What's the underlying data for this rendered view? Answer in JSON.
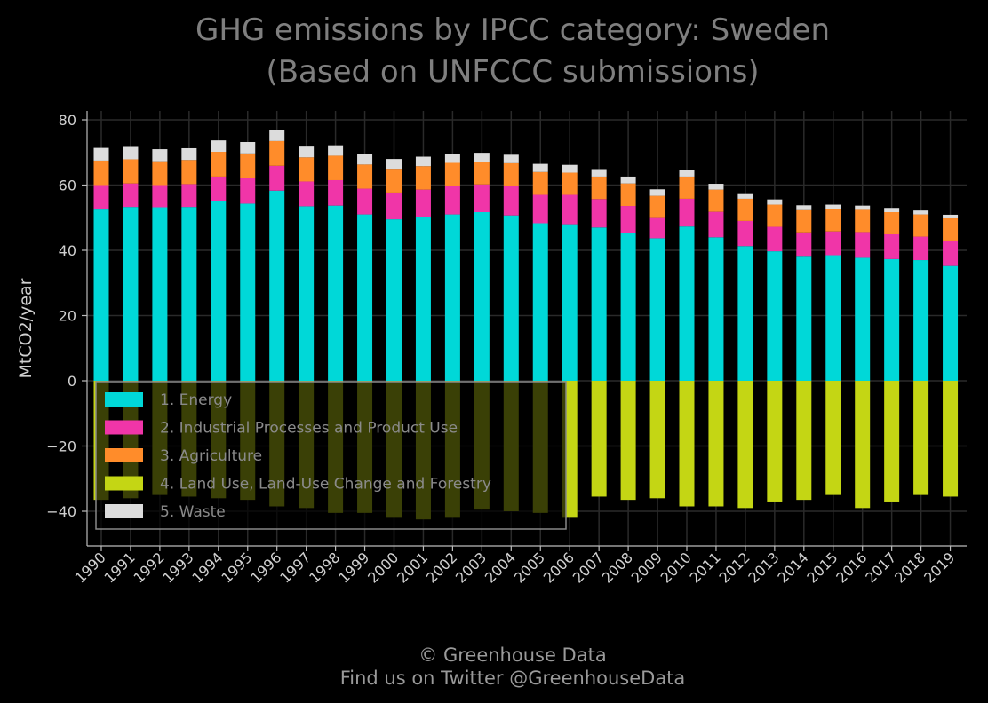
{
  "title_line1": "GHG emissions by IPCC category: Sweden",
  "title_line2": "(Based on UNFCCC submissions)",
  "credit_line1": "© Greenhouse Data",
  "credit_line2": "Find us on Twitter @GreenhouseData",
  "chart_data": {
    "type": "bar",
    "stacked": true,
    "title": "GHG emissions by IPCC category: Sweden\n(Based on UNFCCC submissions)",
    "xlabel": "",
    "ylabel": "MtCO2/year",
    "ylim": [
      -45,
      82
    ],
    "yticks": [
      80,
      60,
      40,
      20,
      0,
      -20,
      -40
    ],
    "ytick_labels": [
      "80",
      "60",
      "40",
      "20",
      "0",
      "−20",
      "−40"
    ],
    "grid": true,
    "legend_position": "bottom-left",
    "categories": [
      "1990",
      "1991",
      "1992",
      "1993",
      "1994",
      "1995",
      "1996",
      "1997",
      "1998",
      "1999",
      "2000",
      "2001",
      "2002",
      "2003",
      "2004",
      "2005",
      "2006",
      "2007",
      "2008",
      "2009",
      "2010",
      "2011",
      "2012",
      "2013",
      "2014",
      "2015",
      "2016",
      "2017",
      "2018",
      "2019"
    ],
    "series": [
      {
        "name": "1. Energy",
        "color": "#00d8d8",
        "values": [
          52.5,
          53.3,
          53.2,
          53.3,
          55.0,
          54.3,
          58.3,
          53.5,
          53.7,
          51.0,
          49.5,
          50.3,
          51.0,
          51.7,
          50.7,
          48.3,
          48.0,
          47.0,
          45.3,
          43.7,
          47.3,
          44.0,
          41.3,
          39.7,
          38.3,
          38.5,
          37.7,
          37.3,
          37.0,
          35.2
        ]
      },
      {
        "name": "2. Industrial Processes and Product Use",
        "color": "#f035a8",
        "values": [
          7.5,
          7.2,
          6.8,
          7.0,
          7.6,
          7.8,
          7.6,
          7.6,
          7.8,
          7.9,
          8.2,
          8.3,
          8.7,
          8.5,
          9.0,
          8.7,
          9.0,
          8.7,
          8.3,
          6.2,
          8.5,
          7.8,
          7.7,
          7.5,
          7.2,
          7.3,
          7.9,
          7.6,
          7.2,
          7.8
        ]
      },
      {
        "name": "3. Agriculture",
        "color": "#ff8c2a",
        "values": [
          7.5,
          7.4,
          7.3,
          7.4,
          7.6,
          7.6,
          7.6,
          7.4,
          7.5,
          7.4,
          7.3,
          7.2,
          7.1,
          7.0,
          7.0,
          7.0,
          6.8,
          6.9,
          6.9,
          6.8,
          6.8,
          6.8,
          6.8,
          6.8,
          6.8,
          6.8,
          6.8,
          6.8,
          6.8,
          6.8
        ]
      },
      {
        "name": "4. Land Use, Land-Use Change and Forestry",
        "color": "#c4d614",
        "values": [
          -36.5,
          -36.0,
          -35.0,
          -35.5,
          -36.0,
          -36.5,
          -38.5,
          -39.0,
          -40.5,
          -40.5,
          -42.0,
          -42.5,
          -42.0,
          -39.5,
          -40.0,
          -40.5,
          -42.0,
          -35.5,
          -36.5,
          -36.0,
          -38.5,
          -38.5,
          -39.0,
          -37.0,
          -36.5,
          -35.0,
          -39.0,
          -37.0,
          -35.0,
          -35.5
        ]
      },
      {
        "name": "5. Waste",
        "color": "#dcdcdc",
        "values": [
          3.9,
          3.8,
          3.7,
          3.6,
          3.5,
          3.5,
          3.4,
          3.3,
          3.2,
          3.1,
          3.0,
          2.9,
          2.8,
          2.7,
          2.6,
          2.5,
          2.4,
          2.3,
          2.1,
          2.0,
          1.9,
          1.8,
          1.7,
          1.6,
          1.5,
          1.4,
          1.3,
          1.3,
          1.2,
          1.1
        ]
      }
    ]
  }
}
